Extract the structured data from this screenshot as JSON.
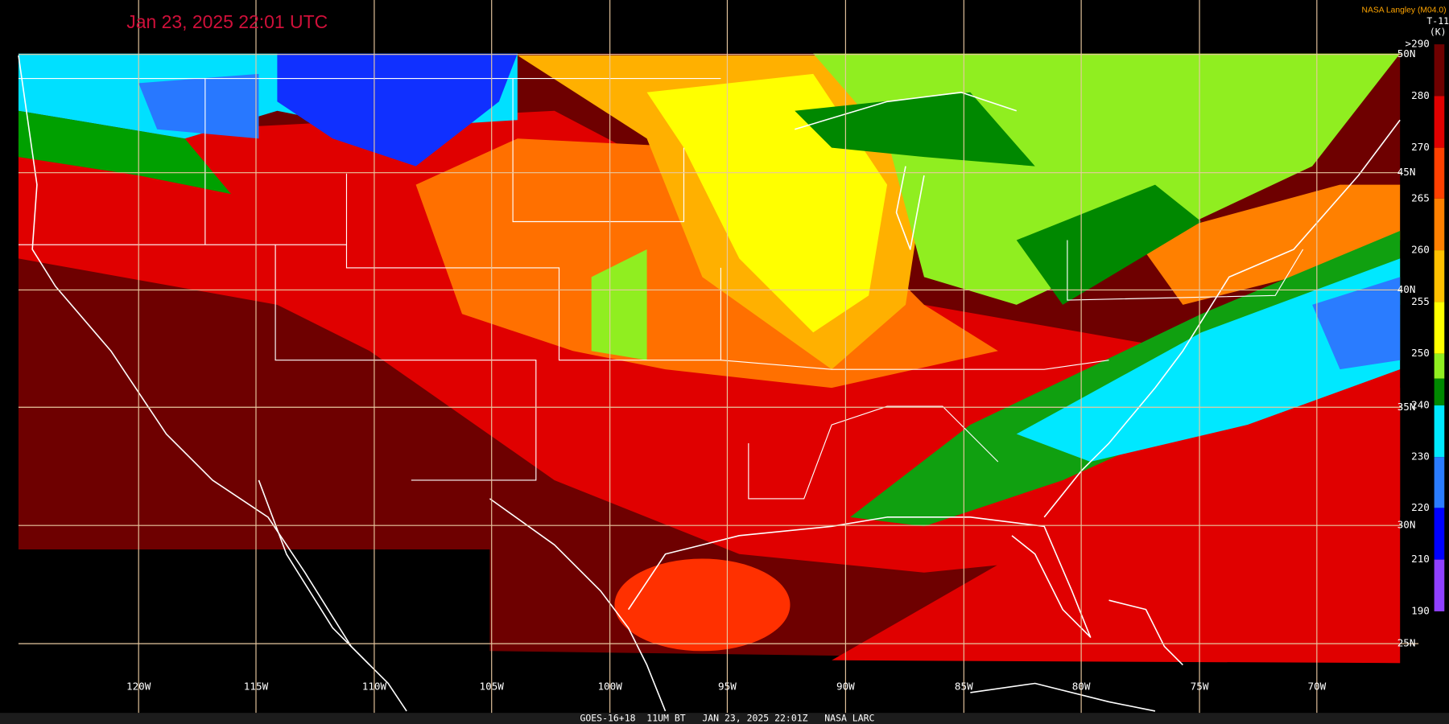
{
  "header": {
    "title": "Jan 23, 2025 22:01 UTC",
    "credit": "NASA Langley (M04.0)"
  },
  "colorbar": {
    "title": "T-11",
    "units": "(K)",
    "labels": [
      ">290",
      "280",
      "270",
      "265",
      "260",
      "255",
      "250",
      "240",
      "230",
      "220",
      "210",
      "190"
    ]
  },
  "map": {
    "lat_labels": [
      "50N",
      "45N",
      "40N",
      "35N",
      "30N",
      "25N"
    ],
    "lon_labels": [
      "120W",
      "115W",
      "110W",
      "105W",
      "100W",
      "95W",
      "90W",
      "85W",
      "80W",
      "75W",
      "70W"
    ]
  },
  "footer": "GOES-16+18  11UM BT   JAN 23, 2025 22:01Z   NASA LARC"
}
